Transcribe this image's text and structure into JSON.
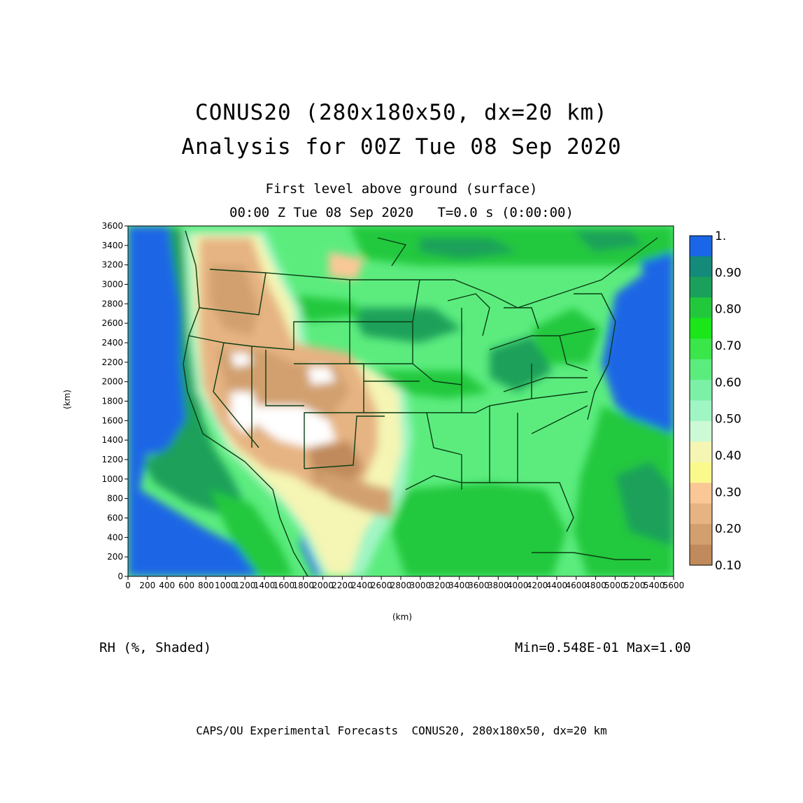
{
  "title": {
    "line1": "CONUS20 (280x180x50, dx=20 km)",
    "line2": "Analysis for 00Z Tue 08 Sep 2020"
  },
  "subtitle": {
    "level": "First level above ground (surface)",
    "time": "00:00 Z Tue 08 Sep 2020   T=0.0 s (0:00:00)"
  },
  "variable_label": "RH (%, Shaded)",
  "min_max": "Min=0.548E-01 Max=1.00",
  "footer": "CAPS/OU Experimental Forecasts  CONUS20, 280x180x50, dx=20 km",
  "axes": {
    "x_unit": "(km)",
    "y_unit": "(km)",
    "x_ticks": [
      "0",
      "200",
      "400",
      "600",
      "800",
      "1000",
      "1200",
      "1400",
      "1600",
      "1800",
      "2000",
      "2200",
      "2400",
      "2600",
      "2800",
      "3000",
      "3200",
      "3400",
      "3600",
      "3800",
      "4000",
      "4200",
      "4400",
      "4600",
      "4800",
      "5000",
      "5200",
      "5400",
      "5600"
    ],
    "y_ticks": [
      "0",
      "200",
      "400",
      "600",
      "800",
      "1000",
      "1200",
      "1400",
      "1600",
      "1800",
      "2000",
      "2200",
      "2400",
      "2600",
      "2800",
      "3000",
      "3200",
      "3400",
      "3600"
    ],
    "x_range": [
      0,
      5600
    ],
    "y_range": [
      0,
      3600
    ]
  },
  "colorbar": {
    "labels": [
      "1.",
      "0.90",
      "0.80",
      "0.70",
      "0.60",
      "0.50",
      "0.40",
      "0.30",
      "0.20",
      "0.10"
    ],
    "colors": [
      "#1a66e6",
      "#138a7a",
      "#1aa05a",
      "#22c83c",
      "#1ae61a",
      "#3ae64a",
      "#5cec7e",
      "#7cf0a6",
      "#a0f5c4",
      "#ccfad6",
      "#f5f5b4",
      "#fafa8c",
      "#fac896",
      "#e6b482",
      "#d2a06e",
      "#c08a5c"
    ]
  }
}
